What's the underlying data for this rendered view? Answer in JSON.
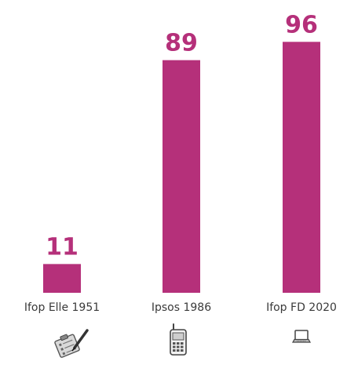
{
  "chart_data": {
    "type": "bar",
    "categories": [
      "Ifop Elle 1951",
      "Ipsos 1986",
      "Ifop FD 2020"
    ],
    "values": [
      11,
      89,
      96
    ],
    "data_labels": [
      "11",
      "89",
      "96"
    ],
    "category_icons": [
      "clipboard-pen-icon",
      "mobile-phone-icon",
      "laptop-icon"
    ],
    "title": "",
    "xlabel": "",
    "ylabel": "",
    "ylim": [
      0,
      100
    ],
    "grid": false,
    "legend": "none",
    "colors": {
      "bar": "#b5307a",
      "value_label": "#b5307a"
    }
  }
}
